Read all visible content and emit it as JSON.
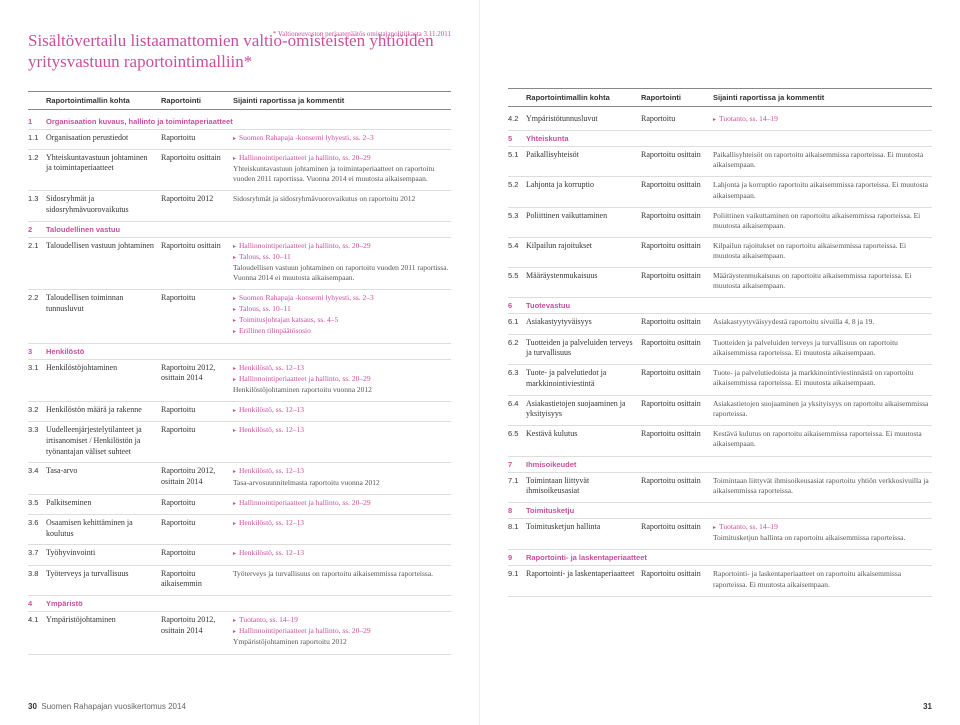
{
  "title": "Sisältövertailu listaamattomien valtio-omisteisten yhtiöiden yritysvastuun raportointimalliin*",
  "topnote": "* Valtioneuvoston periaatepäätös omistajapolitiikasta 3.11.2011",
  "headers": {
    "topic": "Raportointimallin kohta",
    "rep": "Raportointi",
    "loc": "Sijainti raportissa ja kommentit"
  },
  "left": [
    {
      "type": "section",
      "num": "1",
      "label": "Organisaation kuvaus, hallinto ja toimintaperiaatteet"
    },
    {
      "type": "row",
      "num": "1.1",
      "topic": "Organisaation perustiedot",
      "rep": "Raportoitu",
      "loc": [
        {
          "t": "link",
          "v": "Suomen Rahapaja -konserni lyhyesti, ss. 2–3"
        }
      ]
    },
    {
      "type": "row",
      "num": "1.2",
      "topic": "Yhteiskuntavastuun johtaminen ja toimintaperiaatteet",
      "rep": "Raportoitu osittain",
      "loc": [
        {
          "t": "link",
          "v": "Hallinnointiperiaatteet ja hallinto, ss. 20–29"
        },
        {
          "t": "text",
          "v": "Yhteiskuntavastuun johtaminen ja toimintaperiaatteet on raportoitu vuoden 2011 raportissa. Vuonna 2014 ei muutosta aikaisempaan."
        }
      ]
    },
    {
      "type": "row",
      "num": "1.3",
      "topic": "Sidosryhmät ja sidosryhmävuorovaikutus",
      "rep": "Raportoitu 2012",
      "loc": [
        {
          "t": "text",
          "v": "Sidosryhmät ja sidosryhmävuorovaikutus on raportoitu 2012"
        }
      ]
    },
    {
      "type": "section",
      "num": "2",
      "label": "Taloudellinen vastuu"
    },
    {
      "type": "row",
      "num": "2.1",
      "topic": "Taloudellisen vastuun johtaminen",
      "rep": "Raportoitu osittain",
      "loc": [
        {
          "t": "link",
          "v": "Hallinnointiperiaatteet ja hallinto, ss. 20–29"
        },
        {
          "t": "link",
          "v": "Talous, ss. 10–11"
        },
        {
          "t": "text",
          "v": "Taloudellisen vastuun johtaminen on raportoitu vuoden 2011 raportissa. Vuonna 2014 ei muutosta aikaisempaan."
        }
      ]
    },
    {
      "type": "row",
      "num": "2.2",
      "topic": "Taloudellisen toiminnan tunnusluvut",
      "rep": "Raportoitu",
      "loc": [
        {
          "t": "link",
          "v": "Suomen Rahapaja -konserni lyhyesti, ss. 2–3"
        },
        {
          "t": "link",
          "v": "Talous, ss. 10–11"
        },
        {
          "t": "link",
          "v": "Toimitusjohtajan katsaus, ss. 4–5"
        },
        {
          "t": "link",
          "v": "Erillinen tilinpäätösosio"
        }
      ]
    },
    {
      "type": "section",
      "num": "3",
      "label": "Henkilöstö"
    },
    {
      "type": "row",
      "num": "3.1",
      "topic": "Henkilöstöjohtaminen",
      "rep": "Raportoitu 2012, osittain 2014",
      "loc": [
        {
          "t": "link",
          "v": "Henkilöstö, ss. 12–13"
        },
        {
          "t": "link",
          "v": "Hallinnointiperiaatteet ja hallinto, ss. 20–29"
        },
        {
          "t": "text",
          "v": "Henkilöstöjohtaminen raportoitu vuonna 2012"
        }
      ]
    },
    {
      "type": "row",
      "num": "3.2",
      "topic": "Henkilöstön määrä ja rakenne",
      "rep": "Raportoitu",
      "loc": [
        {
          "t": "link",
          "v": "Henkilöstö, ss. 12–13"
        }
      ]
    },
    {
      "type": "row",
      "num": "3.3",
      "topic": "Uudelleenjärjestelytilanteet ja irtisanomiset / Henkilöstön ja työnantajan väliset suhteet",
      "rep": "Raportoitu",
      "loc": [
        {
          "t": "link",
          "v": "Henkilöstö, ss. 12–13"
        }
      ]
    },
    {
      "type": "row",
      "num": "3.4",
      "topic": "Tasa-arvo",
      "rep": "Raportoitu 2012, osittain 2014",
      "loc": [
        {
          "t": "link",
          "v": "Henkilöstö, ss. 12–13"
        },
        {
          "t": "text",
          "v": "Tasa-arvosuunnitelmasta raportoitu vuonna 2012"
        }
      ]
    },
    {
      "type": "row",
      "num": "3.5",
      "topic": "Palkitseminen",
      "rep": "Raportoitu",
      "loc": [
        {
          "t": "link",
          "v": "Hallinnointiperiaatteet ja hallinto, ss. 20–29"
        }
      ]
    },
    {
      "type": "row",
      "num": "3.6",
      "topic": "Osaamisen kehittäminen ja koulutus",
      "rep": "Raportoitu",
      "loc": [
        {
          "t": "link",
          "v": "Henkilöstö, ss. 12–13"
        }
      ]
    },
    {
      "type": "row",
      "num": "3.7",
      "topic": "Työhyvinvointi",
      "rep": "Raportoitu",
      "loc": [
        {
          "t": "link",
          "v": "Henkilöstö, ss. 12–13"
        }
      ]
    },
    {
      "type": "row",
      "num": "3.8",
      "topic": "Työterveys ja turvallisuus",
      "rep": "Raportoitu aikaisemmin",
      "loc": [
        {
          "t": "text",
          "v": "Työterveys ja turvallisuus on raportoitu aikaisemmissa raporteissa."
        }
      ]
    },
    {
      "type": "section",
      "num": "4",
      "label": "Ympäristö"
    },
    {
      "type": "row",
      "num": "4.1",
      "topic": "Ympäristöjohtaminen",
      "rep": "Raportoitu 2012, osittain 2014",
      "loc": [
        {
          "t": "link",
          "v": "Tuotanto, ss. 14–19"
        },
        {
          "t": "link",
          "v": "Hallinnointiperiaatteet ja hallinto, ss. 20–29"
        },
        {
          "t": "text",
          "v": "Ympäristöjohtaminen raportoitu 2012"
        }
      ]
    }
  ],
  "right": [
    {
      "type": "row",
      "num": "4.2",
      "topic": "Ympäristötunnusluvut",
      "rep": "Raportoitu",
      "loc": [
        {
          "t": "link",
          "v": "Tuotanto, ss. 14–19"
        }
      ]
    },
    {
      "type": "section",
      "num": "5",
      "label": "Yhteiskunta"
    },
    {
      "type": "row",
      "num": "5.1",
      "topic": "Paikallisyhteisöt",
      "rep": "Raportoitu osittain",
      "loc": [
        {
          "t": "text",
          "v": "Paikallisyhteisöt on raportoitu aikaisemmissa raporteissa. Ei muutosta aikaisempaan."
        }
      ]
    },
    {
      "type": "row",
      "num": "5.2",
      "topic": "Lahjonta ja korruptio",
      "rep": "Raportoitu osittain",
      "loc": [
        {
          "t": "text",
          "v": "Lahjonta ja korruptio raportoitu aikaisemmissa raporteissa. Ei muutosta aikaisempaan."
        }
      ]
    },
    {
      "type": "row",
      "num": "5.3",
      "topic": "Poliittinen vaikuttaminen",
      "rep": "Raportoitu osittain",
      "loc": [
        {
          "t": "text",
          "v": "Poliittinen vaikuttaminen on raportoitu aikaisemmissa raporteissa. Ei muutosta aikaisempaan."
        }
      ]
    },
    {
      "type": "row",
      "num": "5.4",
      "topic": "Kilpailun rajoitukset",
      "rep": "Raportoitu osittain",
      "loc": [
        {
          "t": "text",
          "v": "Kilpailun rajoitukset on raportoitu aikaisemmissa raporteissa. Ei muutosta aikaisempaan."
        }
      ]
    },
    {
      "type": "row",
      "num": "5.5",
      "topic": "Määräystenmukaisuus",
      "rep": "Raportoitu osittain",
      "loc": [
        {
          "t": "text",
          "v": "Määräystenmukaisuus on raportoitu aikaisemmissa raporteissa. Ei muutosta aikaisempaan."
        }
      ]
    },
    {
      "type": "section",
      "num": "6",
      "label": "Tuotevastuu"
    },
    {
      "type": "row",
      "num": "6.1",
      "topic": "Asiakastyytyväisyys",
      "rep": "Raportoitu osittain",
      "loc": [
        {
          "t": "text",
          "v": "Asiakastyytyväisyydestä raportoitu sivuilla 4, 8 ja 19."
        }
      ]
    },
    {
      "type": "row",
      "num": "6.2",
      "topic": "Tuotteiden ja palveluiden terveys ja turvallisuus",
      "rep": "Raportoitu osittain",
      "loc": [
        {
          "t": "text",
          "v": "Tuotteiden ja palveluiden terveys ja turvallisuus on raportoitu aikaisemmissa raporteissa. Ei muutosta aikaisempaan."
        }
      ]
    },
    {
      "type": "row",
      "num": "6.3",
      "topic": "Tuote- ja palvelutiedot ja markkinointiviestintä",
      "rep": "Raportoitu osittain",
      "loc": [
        {
          "t": "text",
          "v": "Tuote- ja palvelutiedoista ja markkinointiviestinnästä on raportoitu aikaisemmissa raporteissa. Ei muutosta aikaisempaan."
        }
      ]
    },
    {
      "type": "row",
      "num": "6.4",
      "topic": "Asiakastietojen suojaaminen ja yksityisyys",
      "rep": "Raportoitu osittain",
      "loc": [
        {
          "t": "text",
          "v": "Asiakastietojen suojaaminen ja yksityisyys on raportoitu aikaisemmissa raporteissa."
        }
      ]
    },
    {
      "type": "row",
      "num": "6.5",
      "topic": "Kestävä kulutus",
      "rep": "Raportoitu osittain",
      "loc": [
        {
          "t": "text",
          "v": "Kestävä kulutus on raportoitu aikaisemmissa raporteissa. Ei muutosta aikaisempaan."
        }
      ]
    },
    {
      "type": "section",
      "num": "7",
      "label": "Ihmisoikeudet"
    },
    {
      "type": "row",
      "num": "7.1",
      "topic": "Toimintaan liittyvät ihmisoikeusasiat",
      "rep": "Raportoitu osittain",
      "loc": [
        {
          "t": "text",
          "v": "Toimintaan liittyvät ihmisoikeusasiat raportoitu yhtiön verkkosivuilla ja aikaisemmissa raporteissa."
        }
      ]
    },
    {
      "type": "section",
      "num": "8",
      "label": "Toimitusketju"
    },
    {
      "type": "row",
      "num": "8.1",
      "topic": "Toimitusketjun hallinta",
      "rep": "Raportoitu osittain",
      "loc": [
        {
          "t": "link",
          "v": "Tuotanto, ss. 14–19"
        },
        {
          "t": "text",
          "v": "Toimitusketjun hallinta on raportoitu aikaisemmissa raporteissa."
        }
      ]
    },
    {
      "type": "section",
      "num": "9",
      "label": "Raportointi- ja laskentaperiaatteet"
    },
    {
      "type": "row",
      "num": "9.1",
      "topic": "Raportointi- ja laskentaperiaatteet",
      "rep": "Raportoitu osittain",
      "loc": [
        {
          "t": "text",
          "v": "Raportointi- ja laskentaperiaatteet on raportoitu aikaisemmissa raporteissa. Ei muutosta aikaisempaan."
        }
      ]
    }
  ],
  "footer": {
    "leftNum": "30",
    "leftText": "Suomen Rahapajan vuosikertomus 2014",
    "rightNum": "31"
  }
}
